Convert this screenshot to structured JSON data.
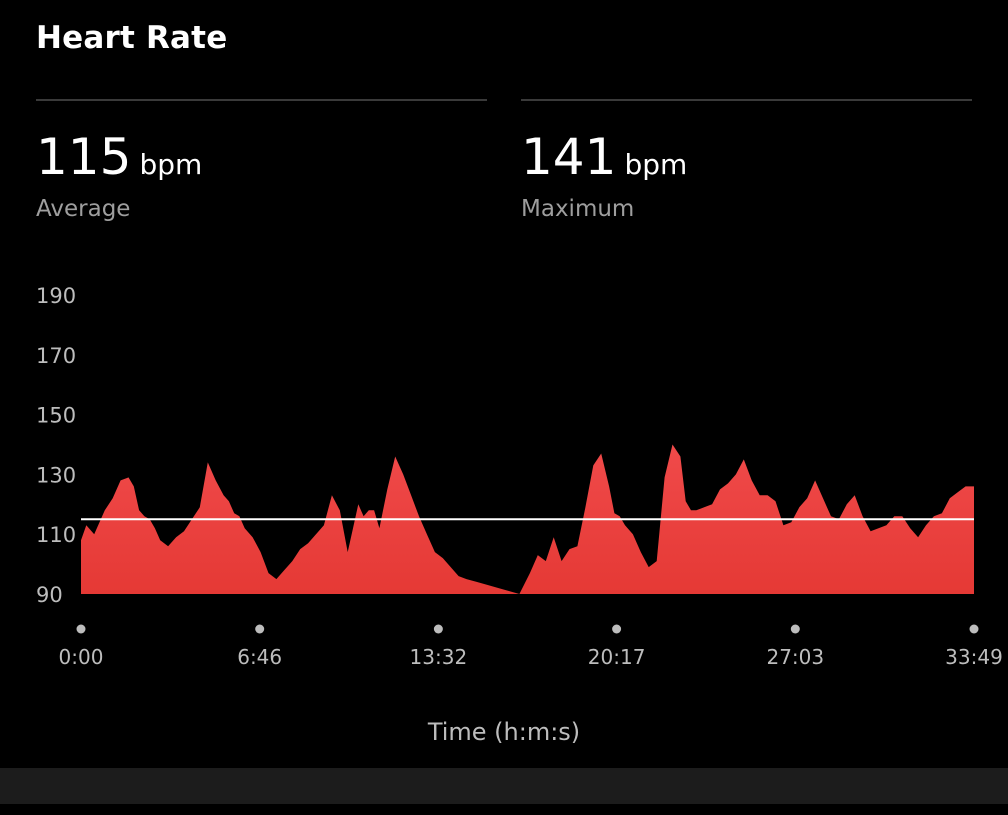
{
  "header": {
    "title": "Heart Rate"
  },
  "stats": {
    "average": {
      "value": "115",
      "unit": "bpm",
      "label": "Average"
    },
    "maximum": {
      "value": "141",
      "unit": "bpm",
      "label": "Maximum"
    }
  },
  "chart_data": {
    "type": "area",
    "title": "",
    "xlabel": "Time (h:m:s)",
    "ylabel": "",
    "x_unit": "minutes",
    "ylim": [
      90,
      190
    ],
    "yticks": [
      90,
      110,
      130,
      150,
      170,
      190
    ],
    "xticks": [
      {
        "value": 0,
        "label": "0:00"
      },
      {
        "value": 6.767,
        "label": "6:46"
      },
      {
        "value": 13.533,
        "label": "13:32"
      },
      {
        "value": 20.283,
        "label": "20:17"
      },
      {
        "value": 27.05,
        "label": "27:03"
      },
      {
        "value": 33.817,
        "label": "33:49"
      }
    ],
    "average_line": 115,
    "fill_color": "#e53935",
    "fill_color_top": "#f04a4a",
    "reference_line_color": "#ffffff",
    "series": [
      {
        "x": [
          0,
          0.2,
          0.5,
          0.9,
          1.2,
          1.5,
          1.8,
          2.0,
          2.2,
          2.4,
          2.6,
          2.8,
          3.0,
          3.3,
          3.6,
          3.9,
          4.2,
          4.5,
          4.8,
          5.1,
          5.4,
          5.6,
          5.8,
          6.0,
          6.2,
          6.5,
          6.8,
          7.1,
          7.4,
          7.7,
          8.0,
          8.3,
          8.6,
          8.9,
          9.2,
          9.5,
          9.8,
          10.1,
          10.3,
          10.5,
          10.7,
          10.9,
          11.1,
          11.3,
          11.6,
          11.9,
          12.2,
          12.5,
          12.8,
          13.1,
          13.4,
          13.7,
          14.0,
          14.3,
          14.6,
          15.0,
          15.4,
          15.8,
          16.2,
          16.6,
          17.0,
          17.3,
          17.6,
          17.9,
          18.2,
          18.5,
          18.8,
          19.1,
          19.4,
          19.7,
          20.0,
          20.2,
          20.4,
          20.6,
          20.9,
          21.2,
          21.5,
          21.8,
          22.1,
          22.4,
          22.7,
          22.9,
          23.1,
          23.3,
          23.6,
          23.9,
          24.2,
          24.5,
          24.8,
          25.1,
          25.4,
          25.7,
          26.0,
          26.3,
          26.6,
          26.9,
          27.2,
          27.5,
          27.8,
          28.1,
          28.4,
          28.7,
          29.0,
          29.3,
          29.6,
          29.9,
          30.2,
          30.5,
          30.8,
          31.1,
          31.4,
          31.7,
          32.0,
          32.3,
          32.6,
          32.9,
          33.2,
          33.5,
          33.817
        ],
        "values": [
          108,
          113,
          110,
          118,
          122,
          128,
          129,
          126,
          118,
          116,
          115,
          112,
          108,
          106,
          109,
          111,
          115,
          119,
          134,
          128,
          123,
          121,
          117,
          116,
          112,
          109,
          104,
          97,
          95,
          98,
          101,
          105,
          107,
          110,
          113,
          123,
          118,
          104,
          112,
          120,
          116,
          118,
          118,
          112,
          125,
          136,
          130,
          123,
          116,
          110,
          104,
          102,
          99,
          96,
          95,
          94,
          93,
          92,
          91,
          90,
          97,
          103,
          101,
          109,
          101,
          105,
          106,
          119,
          133,
          137,
          126,
          117,
          116,
          113,
          110,
          104,
          99,
          101,
          129,
          140,
          136,
          121,
          118,
          118,
          119,
          120,
          125,
          127,
          130,
          135,
          128,
          123,
          123,
          121,
          113,
          114,
          119,
          122,
          128,
          122,
          116,
          115,
          120,
          123,
          116,
          111,
          112,
          113,
          116,
          116,
          112,
          109,
          113,
          116,
          117,
          122,
          124,
          126,
          126
        ]
      }
    ]
  },
  "footer": {}
}
